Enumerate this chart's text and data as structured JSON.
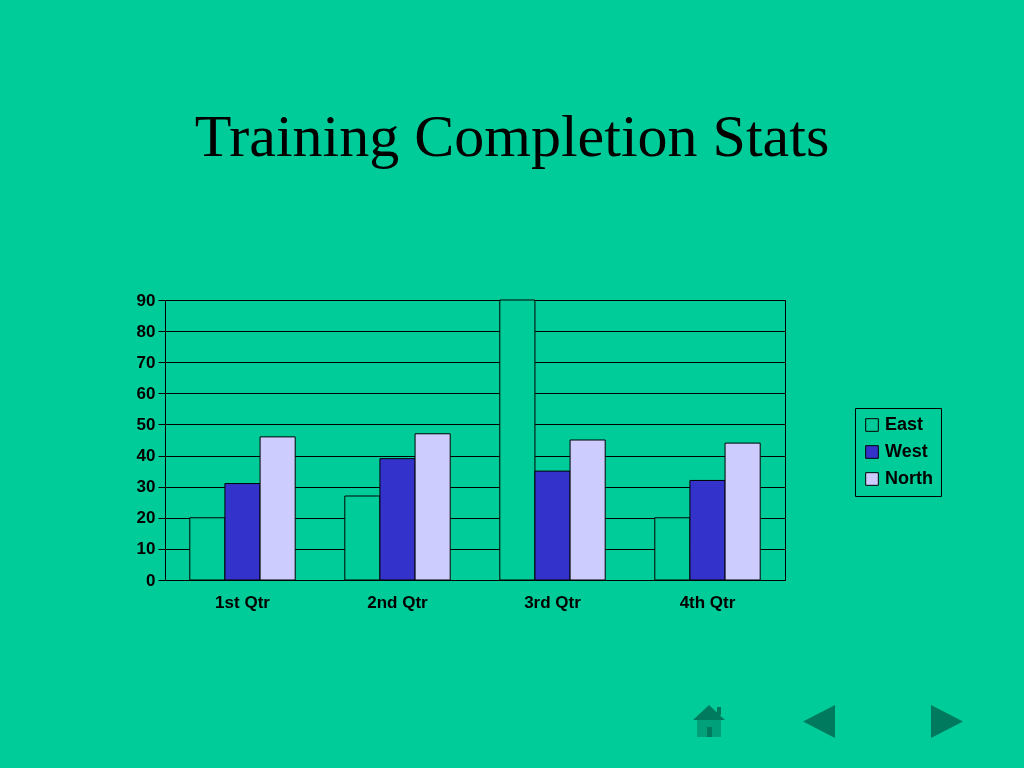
{
  "chart_data": {
    "type": "bar",
    "title": "Training Completion Stats",
    "categories": [
      "1st Qtr",
      "2nd Qtr",
      "3rd Qtr",
      "4th Qtr"
    ],
    "series": [
      {
        "name": "East",
        "color": "#00cc99",
        "values": [
          20,
          27,
          90,
          20
        ]
      },
      {
        "name": "West",
        "color": "#3333cc",
        "values": [
          31,
          39,
          35,
          32
        ]
      },
      {
        "name": "North",
        "color": "#ccccff",
        "values": [
          46,
          47,
          45,
          44
        ]
      }
    ],
    "ylim": [
      0,
      90
    ],
    "yticks": [
      0,
      10,
      20,
      30,
      40,
      50,
      60,
      70,
      80,
      90
    ],
    "grid": "y",
    "legend": "right"
  }
}
